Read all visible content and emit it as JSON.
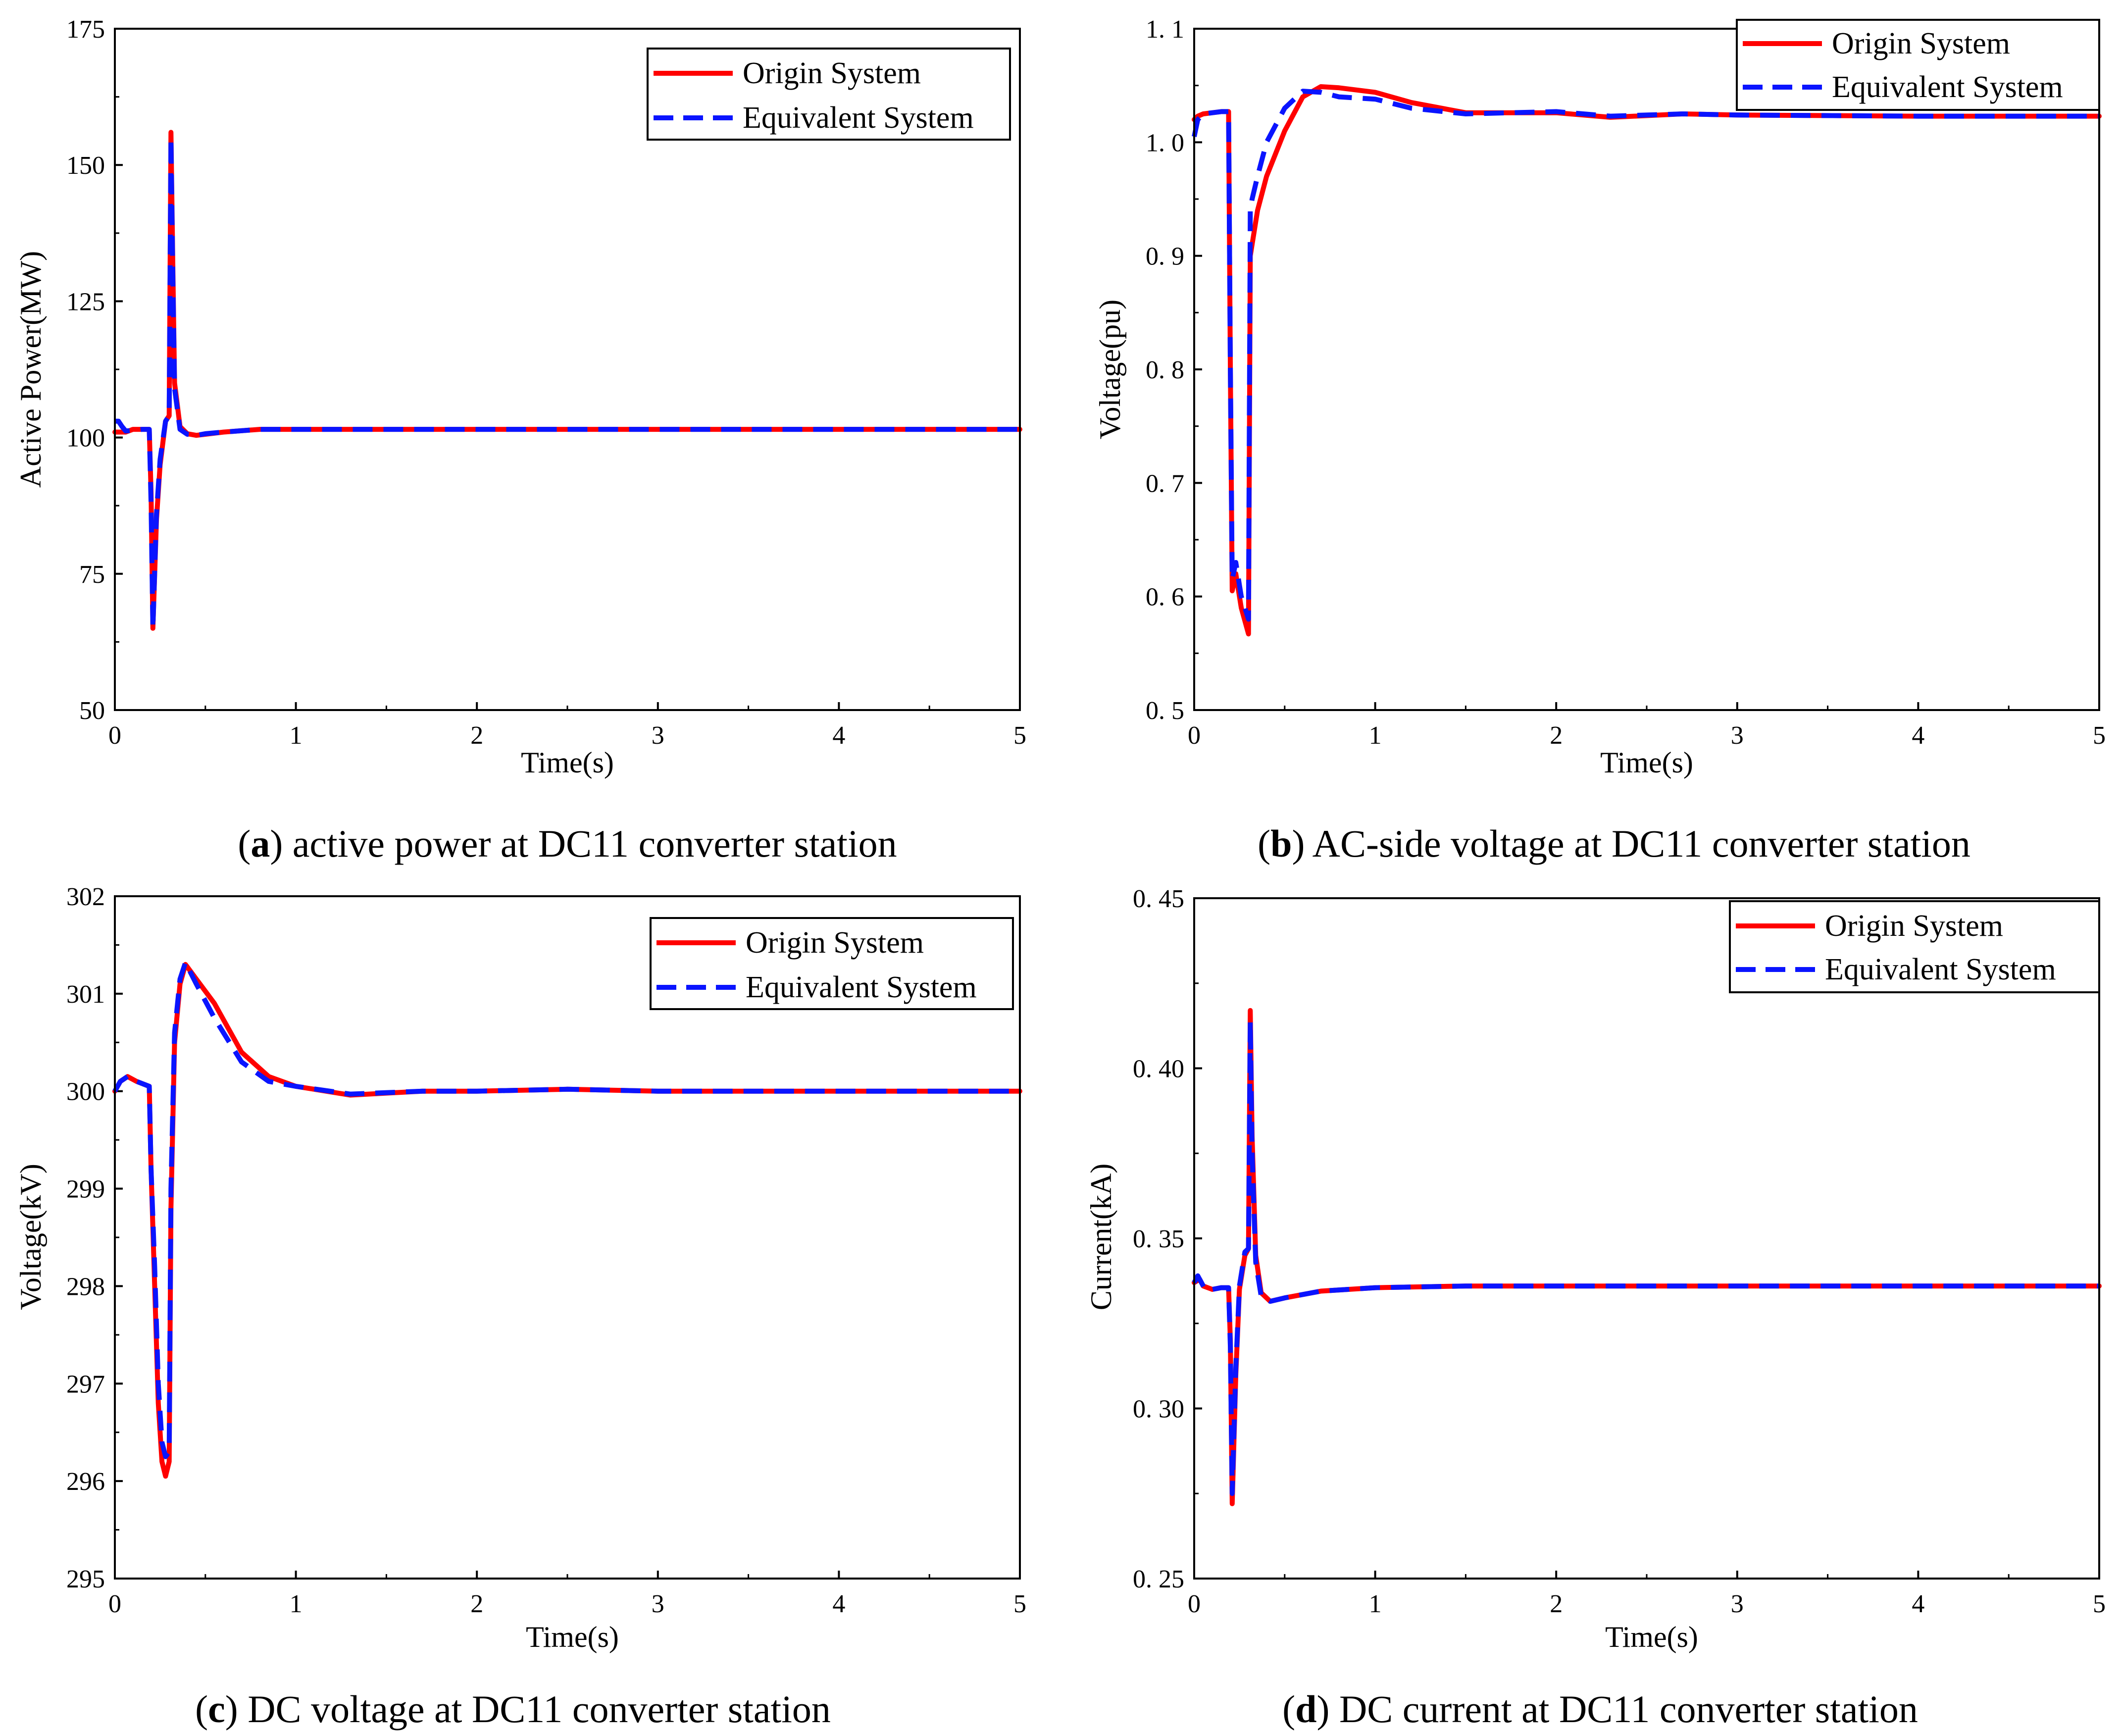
{
  "colors": {
    "origin": "#ff0000",
    "equivalent": "#0a14ff",
    "axis": "#000000",
    "background": "#ffffff"
  },
  "legend": {
    "origin_label": "Origin System",
    "equivalent_label": "Equivalent System"
  },
  "chart_data": [
    {
      "id": "a",
      "type": "line",
      "caption_letter": "a",
      "caption_text": "active power at DC11 converter station",
      "xlabel": "Time(s)",
      "ylabel": "Active Power(MW)",
      "xlim": [
        0,
        5
      ],
      "ylim": [
        50,
        175
      ],
      "xticks": [
        0,
        1,
        2,
        3,
        4,
        5
      ],
      "yticks": [
        50,
        75,
        100,
        125,
        150,
        175
      ],
      "ytick_labels": [
        "50",
        "75",
        "100",
        "125",
        "150",
        "175"
      ],
      "series": [
        {
          "name": "Origin System",
          "x": [
            0,
            0.03,
            0.06,
            0.1,
            0.15,
            0.19,
            0.2,
            0.21,
            0.23,
            0.25,
            0.28,
            0.3,
            0.31,
            0.32,
            0.33,
            0.36,
            0.4,
            0.45,
            0.5,
            0.6,
            0.8,
            1.0,
            2.0,
            3.0,
            4.0,
            5.0
          ],
          "y": [
            101,
            101,
            101,
            101.5,
            101.5,
            101.5,
            90,
            65,
            85,
            95,
            103,
            104,
            156,
            132,
            110,
            102,
            100.7,
            100.4,
            100.6,
            101,
            101.5,
            101.5,
            101.5,
            101.5,
            101.5,
            101.5
          ]
        },
        {
          "name": "Equivalent System",
          "x": [
            0,
            0.02,
            0.04,
            0.06,
            0.1,
            0.15,
            0.19,
            0.2,
            0.21,
            0.23,
            0.25,
            0.28,
            0.3,
            0.31,
            0.32,
            0.33,
            0.36,
            0.4,
            0.45,
            0.5,
            0.6,
            0.8,
            1.0,
            2.0,
            3.0,
            4.0,
            5.0
          ],
          "y": [
            103,
            103,
            102,
            101.2,
            101.3,
            101.5,
            101.5,
            88,
            65,
            86,
            96,
            103,
            104,
            155,
            130,
            109,
            101.5,
            100.6,
            100.4,
            100.7,
            101,
            101.5,
            101.5,
            101.5,
            101.5,
            101.5,
            101.5
          ]
        }
      ]
    },
    {
      "id": "b",
      "type": "line",
      "caption_letter": "b",
      "caption_text": "AC-side voltage at DC11 converter station",
      "xlabel": "Time(s)",
      "ylabel": "Voltage(pu)",
      "xlim": [
        0,
        5
      ],
      "ylim": [
        0.5,
        1.1
      ],
      "xticks": [
        0,
        1,
        2,
        3,
        4,
        5
      ],
      "yticks": [
        0.5,
        0.6,
        0.7,
        0.8,
        0.9,
        1.0,
        1.1
      ],
      "ytick_labels": [
        "0. 5",
        "0. 6",
        "0. 7",
        "0. 8",
        "0. 9",
        "1. 0",
        "1. 1"
      ],
      "series": [
        {
          "name": "Origin System",
          "x": [
            0,
            0.02,
            0.05,
            0.1,
            0.15,
            0.19,
            0.2,
            0.21,
            0.23,
            0.26,
            0.3,
            0.31,
            0.32,
            0.35,
            0.4,
            0.5,
            0.6,
            0.7,
            0.8,
            1.0,
            1.2,
            1.5,
            2.0,
            2.3,
            2.7,
            3.0,
            4.0,
            5.0
          ],
          "y": [
            1.02,
            1.023,
            1.025,
            1.026,
            1.027,
            1.027,
            0.8,
            0.605,
            0.62,
            0.59,
            0.567,
            0.9,
            0.91,
            0.94,
            0.97,
            1.01,
            1.04,
            1.049,
            1.048,
            1.044,
            1.035,
            1.026,
            1.026,
            1.022,
            1.025,
            1.024,
            1.023,
            1.023
          ]
        },
        {
          "name": "Equivalent System",
          "x": [
            0,
            0.02,
            0.05,
            0.1,
            0.15,
            0.19,
            0.2,
            0.21,
            0.23,
            0.26,
            0.3,
            0.31,
            0.32,
            0.35,
            0.4,
            0.5,
            0.6,
            0.7,
            0.8,
            1.0,
            1.2,
            1.5,
            2.0,
            2.3,
            2.7,
            3.0,
            4.0,
            5.0
          ],
          "y": [
            1.005,
            1.02,
            1.025,
            1.026,
            1.027,
            1.027,
            0.8,
            0.615,
            0.63,
            0.6,
            0.58,
            0.94,
            0.95,
            0.97,
            1.0,
            1.03,
            1.045,
            1.044,
            1.04,
            1.038,
            1.03,
            1.025,
            1.027,
            1.023,
            1.025,
            1.024,
            1.023,
            1.023
          ]
        }
      ]
    },
    {
      "id": "c",
      "type": "line",
      "caption_letter": "c",
      "caption_text": "DC voltage at DC11 converter station",
      "xlabel": "Time(s)",
      "ylabel": "Voltage(kV)",
      "xlim": [
        0,
        5
      ],
      "ylim": [
        295,
        302
      ],
      "xticks": [
        0,
        1,
        2,
        3,
        4,
        5
      ],
      "yticks": [
        295,
        296,
        297,
        298,
        299,
        300,
        301,
        302
      ],
      "ytick_labels": [
        "295",
        "296",
        "297",
        "298",
        "299",
        "300",
        "301",
        "302"
      ],
      "series": [
        {
          "name": "Origin System",
          "x": [
            0,
            0.03,
            0.07,
            0.12,
            0.19,
            0.2,
            0.22,
            0.24,
            0.26,
            0.28,
            0.3,
            0.31,
            0.33,
            0.36,
            0.39,
            0.45,
            0.55,
            0.7,
            0.85,
            1.0,
            1.3,
            1.7,
            2.0,
            2.5,
            3.0,
            4.0,
            5.0
          ],
          "y": [
            300,
            300.1,
            300.15,
            300.1,
            300.05,
            299.2,
            298,
            296.8,
            296.2,
            296.05,
            296.2,
            298.8,
            300.5,
            301.1,
            301.3,
            301.15,
            300.9,
            300.4,
            300.15,
            300.05,
            299.96,
            300,
            300,
            300.02,
            300,
            300,
            300
          ]
        },
        {
          "name": "Equivalent System",
          "x": [
            0,
            0.03,
            0.07,
            0.12,
            0.19,
            0.2,
            0.22,
            0.24,
            0.26,
            0.28,
            0.3,
            0.31,
            0.33,
            0.36,
            0.39,
            0.45,
            0.55,
            0.7,
            0.85,
            1.0,
            1.3,
            1.7,
            2.0,
            2.5,
            3.0,
            4.0,
            5.0
          ],
          "y": [
            300,
            300.1,
            300.15,
            300.1,
            300.05,
            299.2,
            298.2,
            297,
            296.4,
            296.25,
            296.3,
            299,
            300.6,
            301.15,
            301.32,
            301.1,
            300.75,
            300.3,
            300.1,
            300.05,
            299.97,
            300,
            300,
            300.02,
            300,
            300,
            300
          ]
        }
      ]
    },
    {
      "id": "d",
      "type": "line",
      "caption_letter": "d",
      "caption_text": "DC current at DC11 converter station",
      "xlabel": "Time(s)",
      "ylabel": "Current(kA)",
      "xlim": [
        0,
        5
      ],
      "ylim": [
        0.25,
        0.45
      ],
      "xticks": [
        0,
        1,
        2,
        3,
        4,
        5
      ],
      "yticks": [
        0.25,
        0.3,
        0.35,
        0.4,
        0.45
      ],
      "ytick_labels": [
        "0. 25",
        "0. 30",
        "0. 35",
        "0. 40",
        "0. 45"
      ],
      "series": [
        {
          "name": "Origin System",
          "x": [
            0,
            0.03,
            0.05,
            0.1,
            0.15,
            0.19,
            0.2,
            0.21,
            0.23,
            0.25,
            0.28,
            0.3,
            0.31,
            0.32,
            0.34,
            0.37,
            0.42,
            0.5,
            0.7,
            1.0,
            1.5,
            2.0,
            3.0,
            4.0,
            5.0
          ],
          "y": [
            0.337,
            0.338,
            0.336,
            0.335,
            0.3355,
            0.3355,
            0.32,
            0.272,
            0.31,
            0.335,
            0.345,
            0.347,
            0.417,
            0.38,
            0.345,
            0.334,
            0.3315,
            0.3325,
            0.3345,
            0.3355,
            0.336,
            0.336,
            0.336,
            0.336,
            0.336
          ]
        },
        {
          "name": "Equivalent System",
          "x": [
            0,
            0.02,
            0.04,
            0.06,
            0.1,
            0.15,
            0.19,
            0.2,
            0.21,
            0.23,
            0.25,
            0.28,
            0.3,
            0.31,
            0.32,
            0.34,
            0.37,
            0.42,
            0.5,
            0.7,
            1.0,
            1.5,
            2.0,
            3.0,
            4.0,
            5.0
          ],
          "y": [
            0.337,
            0.339,
            0.337,
            0.335,
            0.335,
            0.3355,
            0.3355,
            0.318,
            0.275,
            0.312,
            0.336,
            0.346,
            0.347,
            0.414,
            0.375,
            0.343,
            0.333,
            0.3315,
            0.3325,
            0.3345,
            0.3355,
            0.336,
            0.336,
            0.336,
            0.336,
            0.336
          ]
        }
      ]
    }
  ]
}
